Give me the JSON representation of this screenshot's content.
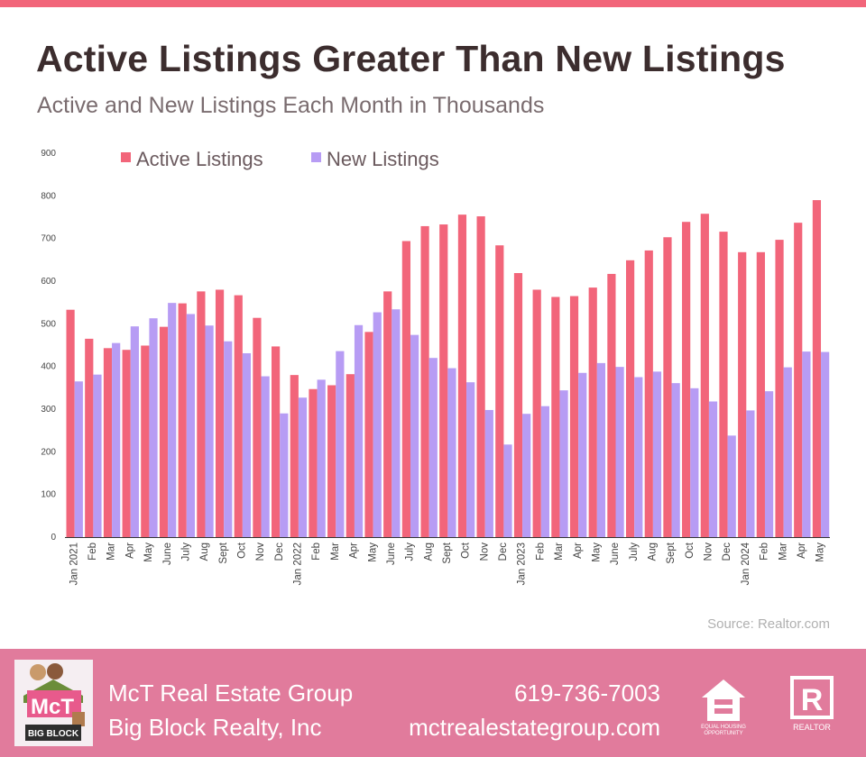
{
  "header": {
    "title": "Active Listings Greater Than New Listings",
    "subtitle": "Active and New Listings Each Month in Thousands"
  },
  "chart_data": {
    "type": "bar",
    "title": "Active Listings Greater Than New Listings",
    "subtitle": "Active and New Listings Each Month in Thousands",
    "xlabel": "",
    "ylabel": "",
    "ylim": [
      0,
      900
    ],
    "yticks": [
      0,
      100,
      200,
      300,
      400,
      500,
      600,
      700,
      800,
      900
    ],
    "grid": false,
    "legend_position": "top",
    "categories": [
      "Jan 2021",
      "Feb",
      "Mar",
      "Apr",
      "May",
      "June",
      "July",
      "Aug",
      "Sept",
      "Oct",
      "Nov",
      "Dec",
      "Jan 2022",
      "Feb",
      "Mar",
      "Apr",
      "May",
      "June",
      "July",
      "Aug",
      "Sept",
      "Oct",
      "Nov",
      "Dec",
      "Jan 2023",
      "Feb",
      "Mar",
      "Apr",
      "May",
      "June",
      "July",
      "Aug",
      "Sept",
      "Oct",
      "Nov",
      "Dec",
      "Jan 2024",
      "Feb",
      "Mar",
      "Apr",
      "May"
    ],
    "series": [
      {
        "name": "Active Listings",
        "color": "#f2657a",
        "values": [
          533,
          465,
          443,
          439,
          449,
          493,
          548,
          576,
          580,
          567,
          514,
          447,
          380,
          347,
          356,
          382,
          481,
          576,
          694,
          729,
          733,
          756,
          752,
          684,
          619,
          580,
          563,
          565,
          585,
          617,
          649,
          672,
          703,
          739,
          758,
          716,
          668,
          668,
          697,
          737,
          790
        ]
      },
      {
        "name": "New Listings",
        "color": "#b79cf4",
        "values": [
          365,
          381,
          455,
          494,
          513,
          549,
          523,
          496,
          459,
          431,
          377,
          290,
          327,
          369,
          436,
          497,
          527,
          534,
          474,
          420,
          396,
          363,
          298,
          217,
          289,
          307,
          344,
          385,
          408,
          399,
          375,
          388,
          361,
          349,
          318,
          238,
          297,
          342,
          398,
          435,
          434
        ]
      }
    ]
  },
  "source": "Source: Realtor.com",
  "footer": {
    "company": "McT Real Estate Group",
    "brokerage": "Big Block Realty, Inc",
    "phone": "619-736-7003",
    "website": "mctrealestategroup.com",
    "logo_text": "BIG BLOCK",
    "equal_housing_line1": "EQUAL HOUSING",
    "equal_housing_line2": "OPPORTUNITY",
    "realtor_text": "REALTOR",
    "realtor_letter": "R",
    "background_color": "#e17b9c"
  }
}
